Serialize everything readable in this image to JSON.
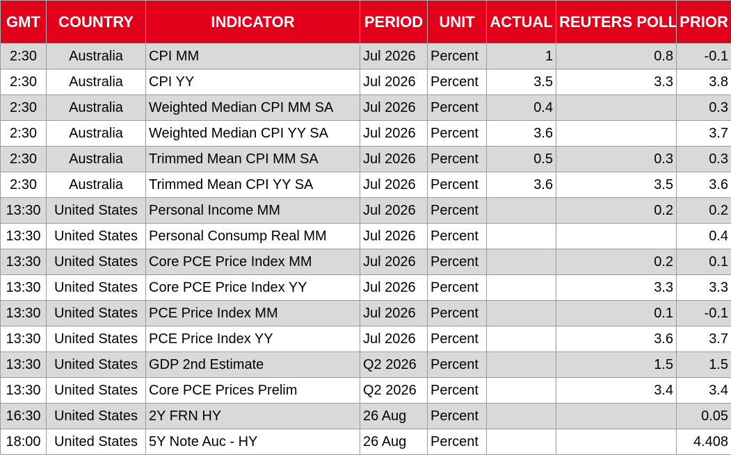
{
  "columns": [
    "GMT",
    "COUNTRY",
    "INDICATOR",
    "PERIOD",
    "UNIT",
    "ACTUAL",
    "REUTERS POLL",
    "PRIOR"
  ],
  "rows": [
    {
      "gmt": "2:30",
      "country": "Australia",
      "indicator": "CPI MM",
      "period": "Jul 2026",
      "unit": "Percent",
      "actual": "1",
      "poll": "0.8",
      "prior": "-0.1"
    },
    {
      "gmt": "2:30",
      "country": "Australia",
      "indicator": "CPI YY",
      "period": "Jul 2026",
      "unit": "Percent",
      "actual": "3.5",
      "poll": "3.3",
      "prior": "3.8"
    },
    {
      "gmt": "2:30",
      "country": "Australia",
      "indicator": "Weighted Median CPI MM SA",
      "period": "Jul 2026",
      "unit": "Percent",
      "actual": "0.4",
      "poll": "",
      "prior": "0.3"
    },
    {
      "gmt": "2:30",
      "country": "Australia",
      "indicator": "Weighted Median CPI YY SA",
      "period": "Jul 2026",
      "unit": "Percent",
      "actual": "3.6",
      "poll": "",
      "prior": "3.7"
    },
    {
      "gmt": "2:30",
      "country": "Australia",
      "indicator": "Trimmed Mean CPI MM SA",
      "period": "Jul 2026",
      "unit": "Percent",
      "actual": "0.5",
      "poll": "0.3",
      "prior": "0.3"
    },
    {
      "gmt": "2:30",
      "country": "Australia",
      "indicator": "Trimmed Mean CPI YY SA",
      "period": "Jul 2026",
      "unit": "Percent",
      "actual": "3.6",
      "poll": "3.5",
      "prior": "3.6"
    },
    {
      "gmt": "13:30",
      "country": "United States",
      "indicator": "Personal Income MM",
      "period": "Jul 2026",
      "unit": "Percent",
      "actual": "",
      "poll": "0.2",
      "prior": "0.2"
    },
    {
      "gmt": "13:30",
      "country": "United States",
      "indicator": "Personal Consump Real MM",
      "period": "Jul 2026",
      "unit": "Percent",
      "actual": "",
      "poll": "",
      "prior": "0.4"
    },
    {
      "gmt": "13:30",
      "country": "United States",
      "indicator": "Core PCE Price Index MM",
      "period": "Jul 2026",
      "unit": "Percent",
      "actual": "",
      "poll": "0.2",
      "prior": "0.1"
    },
    {
      "gmt": "13:30",
      "country": "United States",
      "indicator": "Core PCE Price Index YY",
      "period": "Jul 2026",
      "unit": "Percent",
      "actual": "",
      "poll": "3.3",
      "prior": "3.3"
    },
    {
      "gmt": "13:30",
      "country": "United States",
      "indicator": "PCE Price Index MM",
      "period": "Jul 2026",
      "unit": "Percent",
      "actual": "",
      "poll": "0.1",
      "prior": "-0.1"
    },
    {
      "gmt": "13:30",
      "country": "United States",
      "indicator": "PCE Price Index YY",
      "period": "Jul 2026",
      "unit": "Percent",
      "actual": "",
      "poll": "3.6",
      "prior": "3.7"
    },
    {
      "gmt": "13:30",
      "country": "United States",
      "indicator": "GDP 2nd Estimate",
      "period": "Q2 2026",
      "unit": "Percent",
      "actual": "",
      "poll": "1.5",
      "prior": "1.5"
    },
    {
      "gmt": "13:30",
      "country": "United States",
      "indicator": "Core PCE Prices Prelim",
      "period": "Q2 2026",
      "unit": "Percent",
      "actual": "",
      "poll": "3.4",
      "prior": "3.4"
    },
    {
      "gmt": "16:30",
      "country": "United States",
      "indicator": "2Y FRN HY",
      "period": "26 Aug",
      "unit": "Percent",
      "actual": "",
      "poll": "",
      "prior": "0.05"
    },
    {
      "gmt": "18:00",
      "country": "United States",
      "indicator": "5Y Note Auc - HY",
      "period": "26 Aug",
      "unit": "Percent",
      "actual": "",
      "poll": "",
      "prior": "4.408"
    }
  ]
}
